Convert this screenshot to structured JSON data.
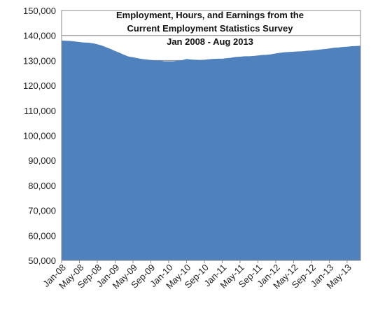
{
  "chart_data": {
    "type": "area",
    "title": "Employment, Hours, and Earnings from the Current Employment Statistics Survey",
    "subtitle": "Jan 2008 - Aug 2013",
    "categories": [
      "Jan-08",
      null,
      null,
      null,
      "May-08",
      null,
      null,
      null,
      "Sep-08",
      null,
      null,
      null,
      "Jan-09",
      null,
      null,
      null,
      "May-09",
      null,
      null,
      null,
      "Sep-09",
      null,
      null,
      null,
      "Jan-10",
      null,
      null,
      null,
      "May-10",
      null,
      null,
      null,
      "Sep-10",
      null,
      null,
      null,
      "Jan-11",
      null,
      null,
      null,
      "May-11",
      null,
      null,
      null,
      "Sep-11",
      null,
      null,
      null,
      "Jan-12",
      null,
      null,
      null,
      "May-12",
      null,
      null,
      null,
      "Sep-12",
      null,
      null,
      null,
      "Jan-13",
      null,
      null,
      null,
      "May-13",
      null,
      null,
      null
    ],
    "values": [
      138000,
      137900,
      137800,
      137600,
      137400,
      137200,
      137100,
      136900,
      136500,
      136000,
      135300,
      134600,
      133800,
      133100,
      132300,
      131600,
      131300,
      130900,
      130600,
      130400,
      130200,
      130000,
      130000,
      129700,
      129700,
      129700,
      129900,
      130100,
      130600,
      130400,
      130300,
      130200,
      130300,
      130500,
      130600,
      130700,
      130700,
      130900,
      131100,
      131400,
      131500,
      131700,
      131700,
      131800,
      132000,
      132200,
      132300,
      132500,
      132800,
      133100,
      133300,
      133400,
      133500,
      133600,
      133700,
      133900,
      134000,
      134200,
      134400,
      134600,
      134800,
      135100,
      135200,
      135400,
      135500,
      135700,
      135800,
      135900
    ],
    "color": "#4f81bd",
    "ylim": [
      50000,
      150000
    ],
    "yticks": [
      {
        "value": 50000,
        "label": "50,000"
      },
      {
        "value": 60000,
        "label": "60,000"
      },
      {
        "value": 70000,
        "label": "70,000"
      },
      {
        "value": 80000,
        "label": "80,000"
      },
      {
        "value": 90000,
        "label": "90,000"
      },
      {
        "value": 100000,
        "label": "100,000"
      },
      {
        "value": 110000,
        "label": "110,000"
      },
      {
        "value": 120000,
        "label": "120,000"
      },
      {
        "value": 130000,
        "label": "130,000"
      },
      {
        "value": 140000,
        "label": "140,000"
      },
      {
        "value": 150000,
        "label": "150,000"
      }
    ],
    "grid": true
  }
}
